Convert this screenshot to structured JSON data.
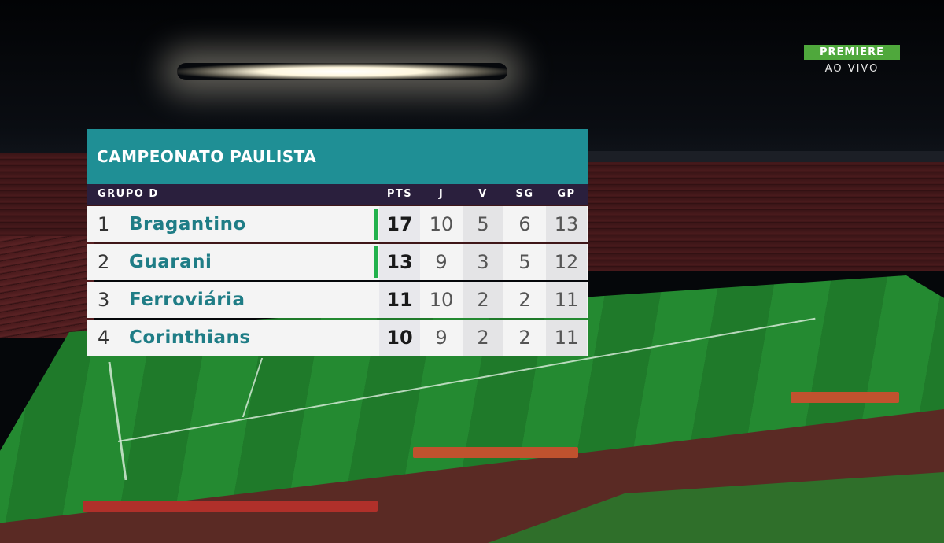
{
  "broadcast": {
    "logo_text": "PREMIERE",
    "live_text": "AO VIVO",
    "logo_color": "#4fa83c"
  },
  "standings": {
    "title": "CAMPEONATO PAULISTA",
    "group": "GRUPO D",
    "columns": [
      "PTS",
      "J",
      "V",
      "SG",
      "GP"
    ],
    "accent_color": "#1f8f95",
    "header_color": "#2a1f3d",
    "team_color": "#1f7d86",
    "qualified_color": "#22b14c",
    "rows": [
      {
        "pos": "1",
        "team": "Bragantino",
        "pts": "17",
        "j": "10",
        "v": "5",
        "sg": "6",
        "gp": "13",
        "qualified": true
      },
      {
        "pos": "2",
        "team": "Guarani",
        "pts": "13",
        "j": "9",
        "v": "3",
        "sg": "5",
        "gp": "12",
        "qualified": true
      },
      {
        "pos": "3",
        "team": "Ferroviária",
        "pts": "11",
        "j": "10",
        "v": "2",
        "sg": "2",
        "gp": "11",
        "qualified": false
      },
      {
        "pos": "4",
        "team": "Corinthians",
        "pts": "10",
        "j": "9",
        "v": "2",
        "sg": "2",
        "gp": "11",
        "qualified": false
      }
    ]
  }
}
